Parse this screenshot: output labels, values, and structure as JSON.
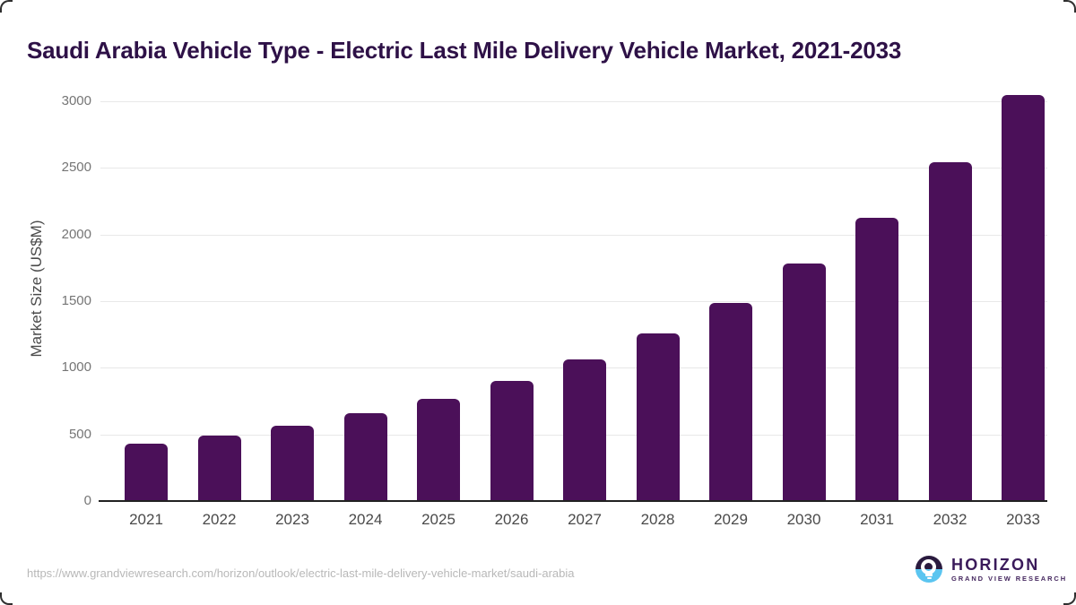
{
  "chart_data": {
    "type": "bar",
    "title": "Saudi Arabia Vehicle Type - Electric Last Mile Delivery Vehicle Market, 2021-2033",
    "categories": [
      "2021",
      "2022",
      "2023",
      "2024",
      "2025",
      "2026",
      "2027",
      "2028",
      "2029",
      "2030",
      "2031",
      "2032",
      "2033"
    ],
    "values": [
      425,
      485,
      560,
      650,
      760,
      895,
      1055,
      1250,
      1480,
      1775,
      2120,
      2535,
      3040
    ],
    "xlabel": "",
    "ylabel": "Market Size (US$M)",
    "ylim": [
      0,
      3000
    ],
    "yticks": [
      0,
      500,
      1000,
      1500,
      2000,
      2500,
      3000
    ],
    "grid": "horizontal",
    "legend": "none",
    "bar_color": "#4B1059"
  },
  "colors": {
    "bar": "#4B1059",
    "title_text": "#2E1147",
    "axis_line": "#212121",
    "gridline": "#E8E8E8",
    "y_tick_text": "#757575",
    "x_tick_text": "#4A4A4A",
    "footer_url_text": "#B8B8B8",
    "logo_purple": "#3A1A5A",
    "logo_circle_dark": "#2A1A3E",
    "logo_circle_blue": "#5BC5F0"
  },
  "footer": {
    "url": "https://www.grandviewresearch.com/horizon/outlook/electric-last-mile-delivery-vehicle-market/saudi-arabia",
    "logo": {
      "name": "HORIZON",
      "subtitle": "GRAND VIEW RESEARCH"
    }
  }
}
